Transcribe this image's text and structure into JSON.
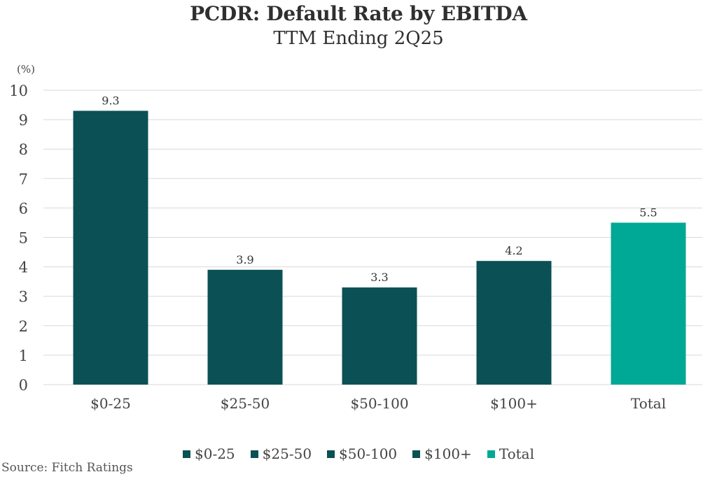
{
  "chart_data": {
    "type": "bar",
    "title": "PCDR: Default Rate by EBITDA",
    "subtitle": "TTM Ending 2Q25",
    "ylabel": "(%)",
    "xlabel": "",
    "ylim": [
      0,
      10
    ],
    "yticks": [
      "0",
      "1",
      "2",
      "3",
      "4",
      "5",
      "6",
      "7",
      "8",
      "9",
      "10"
    ],
    "grid": true,
    "categories": [
      "$0-25",
      "$25-50",
      "$50-100",
      "$100+",
      "Total"
    ],
    "values": [
      9.3,
      3.9,
      3.3,
      4.2,
      5.5
    ],
    "data_labels": [
      "9.3",
      "3.9",
      "3.3",
      "4.2",
      "5.5"
    ],
    "colors": [
      "#0b5055",
      "#0b5055",
      "#0b5055",
      "#0b5055",
      "#00a896"
    ],
    "legend": {
      "placement": "bottom",
      "entries": [
        {
          "label": "$0-25",
          "color": "#0b5055"
        },
        {
          "label": "$25-50",
          "color": "#0b5055"
        },
        {
          "label": "$50-100",
          "color": "#0b5055"
        },
        {
          "label": "$100+",
          "color": "#0b5055"
        },
        {
          "label": "Total",
          "color": "#00a896"
        }
      ]
    },
    "source": "Source: Fitch Ratings"
  }
}
